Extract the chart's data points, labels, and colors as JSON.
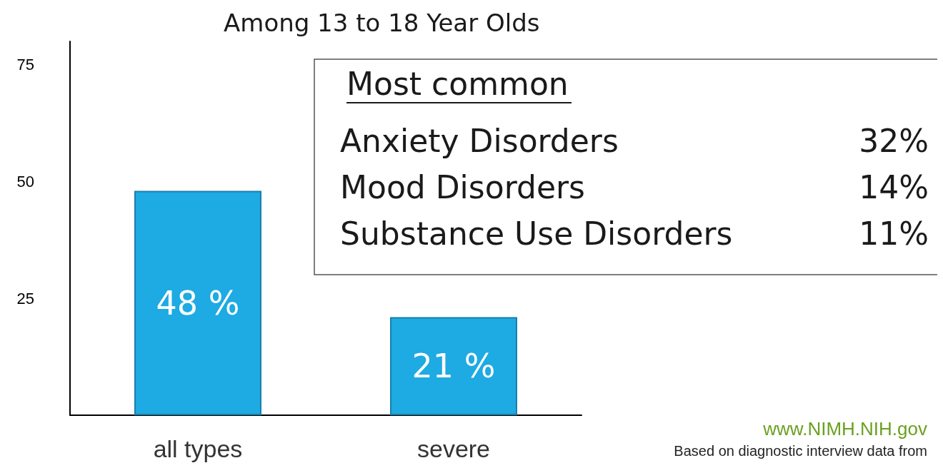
{
  "chart_data": {
    "type": "bar",
    "title": "Among 13 to 18 Year Olds",
    "categories": [
      "all types",
      "severe"
    ],
    "values": [
      48,
      21
    ],
    "value_labels": [
      "48 %",
      "21 %"
    ],
    "color": "#1eaae2",
    "ylim": [
      0,
      80
    ],
    "yticks": [
      25,
      50,
      75
    ],
    "grid": false,
    "annotations": [
      "Most common",
      "Anxiety Disorders",
      "32%",
      "Mood Disorders",
      "14%",
      "Substance Use Disorders",
      "11%",
      "www.NIMH.NIH.gov",
      "Based on diagnostic interview data from"
    ]
  }
}
